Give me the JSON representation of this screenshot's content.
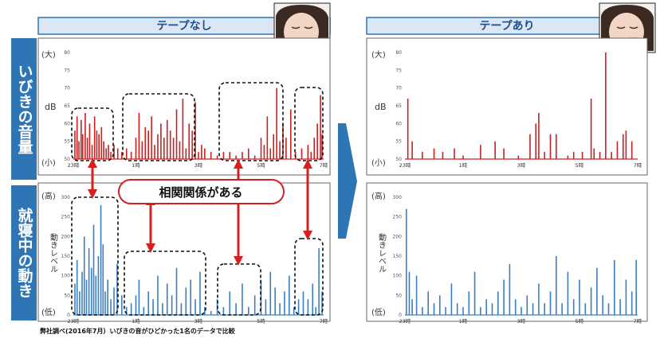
{
  "side_labels": {
    "top": "いびきの音量",
    "bottom": "就寝中の動き"
  },
  "headers": {
    "left": "テープなし",
    "right": "テープあり"
  },
  "axis": {
    "db_unit": "dB",
    "move_unit": "動きレベル",
    "big": "(大)",
    "small": "(小)",
    "high": "(高)",
    "low": "(低)"
  },
  "callout": "相関関係がある",
  "footnote": "弊社調べ(2016年7月）いびきの音がひどかった1名のデータで比較",
  "colors": {
    "header_bg": "#dbe7f4",
    "accent": "#2e75b6",
    "snore": "#cc1f1f",
    "move": "#3a7fc1",
    "arrow": "#d62020"
  },
  "chart_data": [
    {
      "type": "bar",
      "id": "snore-no-tape",
      "title": "テープなし",
      "ylabel": "dB",
      "yticks": [
        50,
        55,
        60,
        65,
        70,
        75,
        80
      ],
      "ylim": [
        50,
        80
      ],
      "xlim": [
        23,
        31
      ],
      "xticks": [
        23,
        25,
        27,
        29,
        31
      ],
      "xticklabels": [
        "23時",
        "1時",
        "3時",
        "5時",
        "7時"
      ],
      "x": [
        23.05,
        23.12,
        23.18,
        23.25,
        23.3,
        23.38,
        23.45,
        23.52,
        23.6,
        23.68,
        23.75,
        23.82,
        23.9,
        23.97,
        24.05,
        24.12,
        24.2,
        24.3,
        24.42,
        24.55,
        24.7,
        24.85,
        25.0,
        25.1,
        25.2,
        25.3,
        25.4,
        25.5,
        25.6,
        25.7,
        25.8,
        25.9,
        26.0,
        26.1,
        26.2,
        26.3,
        26.4,
        26.5,
        26.6,
        26.7,
        26.8,
        26.9,
        27.0,
        27.1,
        27.2,
        27.4,
        27.6,
        27.8,
        28.0,
        28.2,
        28.4,
        28.6,
        28.8,
        29.0,
        29.1,
        29.2,
        29.3,
        29.4,
        29.5,
        29.6,
        29.7,
        29.8,
        29.95,
        30.1,
        30.3,
        30.5,
        30.6,
        30.7,
        30.8,
        30.9,
        30.95
      ],
      "values": [
        58,
        62,
        55,
        61,
        57,
        63,
        56,
        60,
        54,
        62,
        58,
        57,
        59,
        55,
        53,
        54,
        52,
        54,
        53,
        52,
        53,
        52,
        56,
        63,
        55,
        59,
        58,
        62,
        54,
        57,
        60,
        56,
        61,
        58,
        56,
        64,
        55,
        67,
        53,
        60,
        58,
        66,
        52,
        54,
        53,
        52,
        51,
        52,
        52,
        51,
        52,
        53,
        51,
        56,
        54,
        62,
        53,
        57,
        70,
        55,
        60,
        56,
        64,
        52,
        53,
        54,
        52,
        56,
        60,
        68,
        57
      ]
    },
    {
      "type": "bar",
      "id": "snore-tape",
      "title": "テープあり",
      "ylabel": "dB",
      "yticks": [
        50,
        55,
        60,
        65,
        70,
        75,
        80
      ],
      "ylim": [
        50,
        80
      ],
      "xlim": [
        23,
        31
      ],
      "xticks": [
        23,
        25,
        27,
        29,
        31
      ],
      "xticklabels": [
        "23時",
        "1時",
        "3時",
        "5時",
        "7時"
      ],
      "x": [
        23.1,
        23.25,
        23.6,
        24.0,
        24.3,
        24.7,
        25.0,
        25.6,
        26.1,
        26.4,
        26.9,
        27.3,
        27.5,
        27.6,
        27.8,
        28.0,
        28.2,
        28.6,
        28.8,
        29.1,
        29.4,
        29.5,
        29.7,
        29.9,
        30.1,
        30.3,
        30.5,
        30.6,
        30.8
      ],
      "values": [
        67,
        55,
        52,
        53,
        52,
        53,
        51,
        54,
        55,
        53,
        51,
        57,
        60,
        63,
        52,
        57,
        57,
        51,
        52,
        52,
        67,
        53,
        52,
        80,
        52,
        55,
        57,
        58,
        55
      ]
    },
    {
      "type": "bar",
      "id": "move-no-tape",
      "title": "テープなし",
      "ylabel": "動きレベル",
      "yticks": [
        0,
        50,
        100,
        150,
        200,
        250,
        300
      ],
      "ylim": [
        0,
        300
      ],
      "xlim": [
        23,
        31
      ],
      "xticks": [
        23,
        25,
        27,
        29,
        31
      ],
      "xticklabels": [
        "23時",
        "1時",
        "3時",
        "5時",
        "7時"
      ],
      "x": [
        23.05,
        23.12,
        23.2,
        23.28,
        23.35,
        23.42,
        23.5,
        23.58,
        23.65,
        23.72,
        23.8,
        23.88,
        23.95,
        24.02,
        24.1,
        24.2,
        24.3,
        24.4,
        24.55,
        24.7,
        24.85,
        25.0,
        25.1,
        25.25,
        25.4,
        25.55,
        25.7,
        25.85,
        26.0,
        26.15,
        26.3,
        26.45,
        26.6,
        26.75,
        26.9,
        27.05,
        27.2,
        27.4,
        27.6,
        27.8,
        28.0,
        28.2,
        28.4,
        28.6,
        28.8,
        29.0,
        29.15,
        29.3,
        29.45,
        29.6,
        29.75,
        29.9,
        30.05,
        30.2,
        30.35,
        30.5,
        30.65,
        30.75,
        30.85,
        30.95
      ],
      "values": [
        80,
        140,
        60,
        110,
        200,
        90,
        170,
        120,
        230,
        100,
        150,
        280,
        180,
        60,
        90,
        40,
        70,
        130,
        50,
        20,
        30,
        50,
        90,
        20,
        60,
        40,
        100,
        30,
        80,
        50,
        120,
        30,
        70,
        90,
        40,
        110,
        20,
        10,
        40,
        20,
        60,
        30,
        80,
        20,
        50,
        90,
        40,
        110,
        70,
        30,
        60,
        100,
        20,
        40,
        60,
        40,
        80,
        20,
        170,
        60
      ]
    },
    {
      "type": "bar",
      "id": "move-tape",
      "title": "テープあり",
      "ylabel": "動きレベル",
      "yticks": [
        0,
        50,
        100,
        150,
        200,
        250,
        300
      ],
      "ylim": [
        0,
        300
      ],
      "xlim": [
        23,
        31
      ],
      "xticks": [
        23,
        25,
        27,
        29,
        31
      ],
      "xticklabels": [
        "23時",
        "1時",
        "3時",
        "5時",
        "7時"
      ],
      "x": [
        23.05,
        23.15,
        23.25,
        23.4,
        23.6,
        23.8,
        24.0,
        24.2,
        24.4,
        24.6,
        24.8,
        25.0,
        25.2,
        25.4,
        25.6,
        25.8,
        26.0,
        26.2,
        26.4,
        26.6,
        26.8,
        27.0,
        27.2,
        27.4,
        27.6,
        27.8,
        28.0,
        28.2,
        28.4,
        28.6,
        28.8,
        29.0,
        29.2,
        29.4,
        29.6,
        29.8,
        30.0,
        30.2,
        30.4,
        30.6,
        30.8,
        30.95
      ],
      "values": [
        270,
        110,
        40,
        100,
        20,
        60,
        30,
        50,
        20,
        80,
        30,
        20,
        60,
        110,
        20,
        40,
        30,
        60,
        90,
        130,
        40,
        20,
        50,
        30,
        80,
        30,
        60,
        150,
        30,
        110,
        40,
        90,
        30,
        70,
        120,
        50,
        30,
        140,
        40,
        90,
        60,
        140
      ]
    }
  ]
}
